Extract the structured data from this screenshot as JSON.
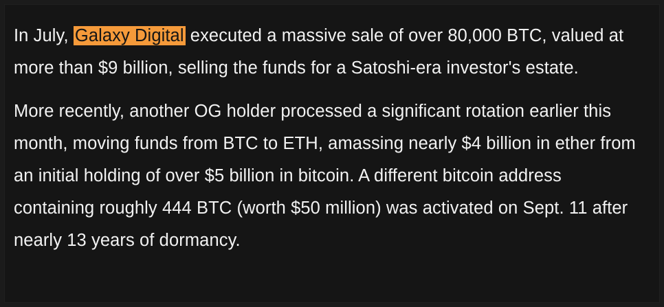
{
  "article": {
    "paragraph_1": {
      "prefix": "In July, ",
      "highlight": "Galaxy Digital",
      "suffix": " executed a massive sale of over 80,000 BTC, valued at more than $9 billion, selling the funds for a Satoshi-era investor's estate."
    },
    "paragraph_2": "More recently, another OG holder processed a significant rotation earlier this month, moving funds from BTC to ETH, amassing nearly $4 billion in ether from an initial holding of over $5 billion in bitcoin. A different bitcoin address containing roughly 444 BTC (worth $50 million) was activated on Sept. 11 after nearly 13 years of dormancy."
  },
  "colors": {
    "background": "#151515",
    "text": "#f2f2f2",
    "highlight": "#f59a3a"
  }
}
